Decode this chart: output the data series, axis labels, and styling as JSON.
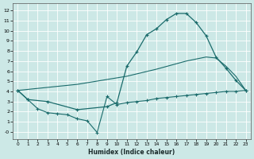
{
  "background_color": "#cce8e6",
  "line_color": "#1a6b6b",
  "xlabel": "Humidex (Indice chaleur)",
  "xlim": [
    -0.5,
    23.5
  ],
  "ylim": [
    -0.7,
    12.7
  ],
  "top_x": [
    0,
    1,
    3,
    6,
    9,
    10,
    11,
    12,
    13,
    14,
    15,
    16,
    17,
    18,
    19,
    20,
    21,
    22,
    23
  ],
  "top_y": [
    4.1,
    3.2,
    3.0,
    2.2,
    2.5,
    2.9,
    6.5,
    7.9,
    9.6,
    10.2,
    11.1,
    11.7,
    11.7,
    10.8,
    9.5,
    7.4,
    6.3,
    5.1,
    4.1
  ],
  "mid_x": [
    0,
    6,
    11,
    14,
    17,
    19,
    20,
    21,
    22,
    23
  ],
  "mid_y": [
    4.1,
    4.7,
    5.5,
    6.2,
    7.0,
    7.4,
    7.3,
    6.5,
    5.5,
    4.1
  ],
  "bot_x": [
    0,
    1,
    2,
    3,
    4,
    5,
    6,
    7,
    8,
    9,
    10,
    11,
    12,
    13,
    14,
    15,
    16,
    17,
    18,
    19,
    20,
    21,
    22,
    23
  ],
  "bot_y": [
    4.1,
    3.2,
    2.3,
    1.9,
    1.8,
    1.7,
    1.3,
    1.1,
    -0.05,
    3.5,
    2.7,
    2.9,
    3.0,
    3.1,
    3.3,
    3.4,
    3.5,
    3.6,
    3.7,
    3.8,
    3.9,
    4.0,
    4.0,
    4.1
  ],
  "ytick_labels": [
    "-0",
    "1",
    "2",
    "3",
    "4",
    "5",
    "6",
    "7",
    "8",
    "9",
    "10",
    "11",
    "12"
  ]
}
